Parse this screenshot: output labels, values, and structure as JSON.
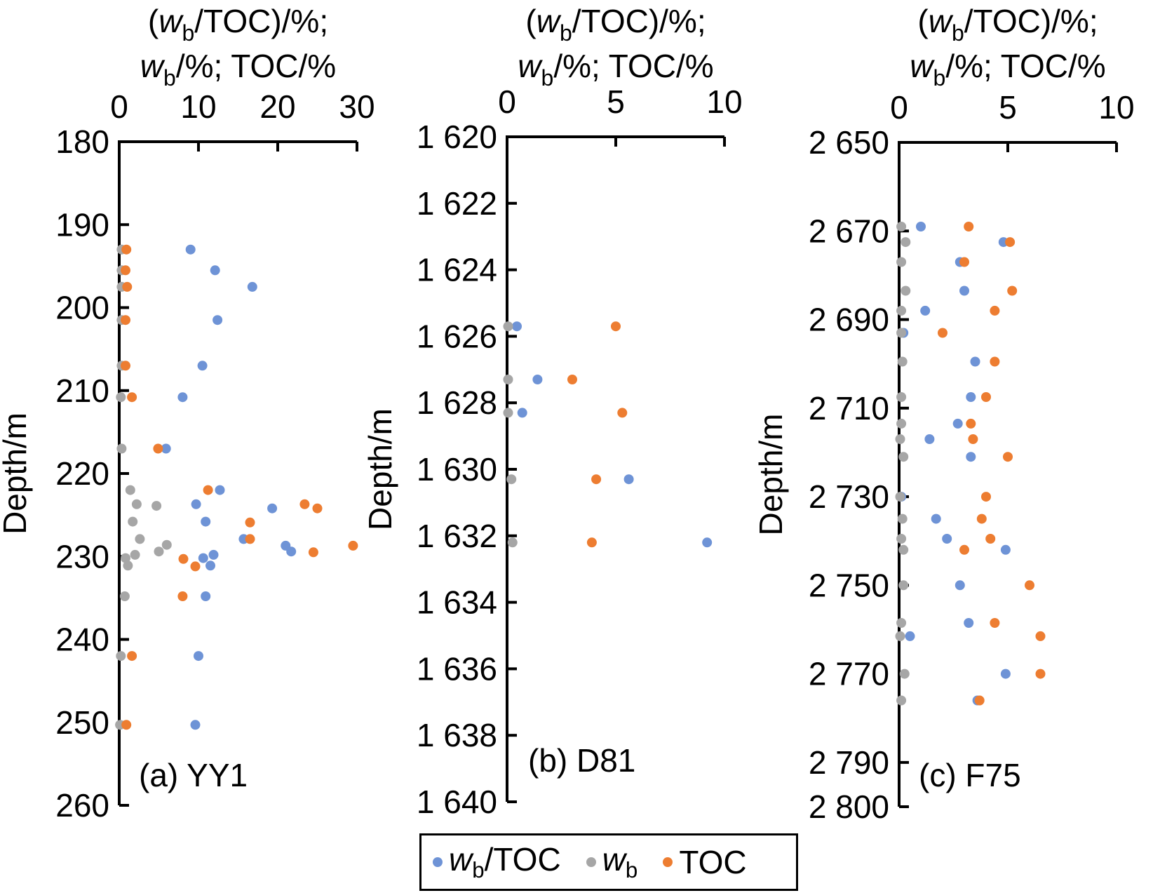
{
  "figure": {
    "axis_title_lines": [
      [
        {
          "text": "(",
          "style": "n"
        },
        {
          "text": "w",
          "style": "i"
        },
        {
          "text": "b",
          "style": "sub"
        },
        {
          "text": "/TOC)/%;",
          "style": "n"
        }
      ],
      [
        {
          "text": "w",
          "style": "i"
        },
        {
          "text": "b",
          "style": "sub"
        },
        {
          "text": "/%; TOC/%",
          "style": "n"
        }
      ]
    ]
  },
  "legend": {
    "items": [
      {
        "key": "wb/TOC",
        "color": "#6e93d6",
        "segments": [
          {
            "text": "w",
            "style": "i"
          },
          {
            "text": "b",
            "style": "sub"
          },
          {
            "text": "/TOC",
            "style": "n"
          }
        ]
      },
      {
        "key": "wb",
        "color": "#a6a6a6",
        "segments": [
          {
            "text": "w",
            "style": "i"
          },
          {
            "text": "b",
            "style": "sub"
          }
        ]
      },
      {
        "key": "TOC",
        "color": "#ed7d31",
        "segments": [
          {
            "text": "TOC",
            "style": "n"
          }
        ]
      }
    ]
  },
  "chart_data": [
    {
      "type": "scatter",
      "panel_label": "(a) YY1",
      "well": "YY1",
      "x_axis": {
        "min": 0,
        "max": 30,
        "ticks": [
          0,
          10,
          20,
          30
        ],
        "tick_labels": [
          "0",
          "10",
          "20",
          "30"
        ]
      },
      "y_axis": {
        "label": "Depth/m",
        "min": 180,
        "max": 260,
        "ticks": [
          180,
          190,
          200,
          210,
          220,
          230,
          240,
          250,
          260
        ],
        "tick_labels": [
          "180",
          "190",
          "200",
          "210",
          "220",
          "230",
          "240",
          "250",
          "260"
        ]
      },
      "series": [
        {
          "name": "wb/TOC",
          "color": "#6e93d6",
          "points": [
            [
              9.0,
              193
            ],
            [
              12.1,
              195.5
            ],
            [
              16.8,
              197.5
            ],
            [
              12.4,
              201.5
            ],
            [
              10.5,
              207
            ],
            [
              8.0,
              210.8
            ],
            [
              5.9,
              217
            ],
            [
              12.7,
              222
            ],
            [
              9.7,
              223.7
            ],
            [
              19.3,
              224.2
            ],
            [
              10.9,
              225.8
            ],
            [
              15.7,
              227.9
            ],
            [
              21.0,
              228.7
            ],
            [
              21.7,
              229.4
            ],
            [
              11.9,
              229.8
            ],
            [
              10.6,
              230.2
            ],
            [
              11.5,
              231.1
            ],
            [
              10.9,
              234.8
            ],
            [
              10.0,
              242
            ],
            [
              9.6,
              250.3
            ]
          ]
        },
        {
          "name": "wb",
          "color": "#a6a6a6",
          "points": [
            [
              0.3,
              193
            ],
            [
              0.3,
              195.5
            ],
            [
              0.3,
              197.5
            ],
            [
              0.3,
              201.5
            ],
            [
              0.3,
              207
            ],
            [
              0.2,
              210.8
            ],
            [
              0.3,
              217
            ],
            [
              1.4,
              222
            ],
            [
              2.2,
              223.7
            ],
            [
              4.7,
              223.9
            ],
            [
              1.7,
              225.8
            ],
            [
              2.6,
              227.9
            ],
            [
              6.0,
              228.6
            ],
            [
              5.0,
              229.4
            ],
            [
              2.0,
              229.8
            ],
            [
              0.8,
              230.2
            ],
            [
              1.1,
              231.1
            ],
            [
              0.7,
              234.8
            ],
            [
              0.2,
              242
            ],
            [
              0.1,
              250.3
            ]
          ]
        },
        {
          "name": "TOC",
          "color": "#ed7d31",
          "points": [
            [
              0.9,
              193
            ],
            [
              0.8,
              195.5
            ],
            [
              1.0,
              197.5
            ],
            [
              0.8,
              201.5
            ],
            [
              0.8,
              207
            ],
            [
              1.6,
              210.8
            ],
            [
              4.9,
              217
            ],
            [
              11.2,
              222
            ],
            [
              23.4,
              223.7
            ],
            [
              25.0,
              224.2
            ],
            [
              16.5,
              225.9
            ],
            [
              16.5,
              227.9
            ],
            [
              29.5,
              228.7
            ],
            [
              24.5,
              229.5
            ],
            [
              8.1,
              230.3
            ],
            [
              9.6,
              231.2
            ],
            [
              8.0,
              234.8
            ],
            [
              1.6,
              242
            ],
            [
              0.9,
              250.3
            ]
          ]
        }
      ]
    },
    {
      "type": "scatter",
      "panel_label": "(b) D81",
      "well": "D81",
      "x_axis": {
        "min": 0,
        "max": 10,
        "ticks": [
          0,
          5,
          10
        ],
        "tick_labels": [
          "0",
          "5",
          "10"
        ]
      },
      "y_axis": {
        "label": "Depth/m",
        "min": 1620,
        "max": 1640,
        "ticks": [
          1620,
          1622,
          1624,
          1626,
          1628,
          1630,
          1632,
          1634,
          1636,
          1638,
          1640
        ],
        "tick_labels": [
          "1 620",
          "1 622",
          "1 624",
          "1 626",
          "1 628",
          "1 630",
          "1 632",
          "1 634",
          "1 636",
          "1 638",
          "1 640"
        ]
      },
      "series": [
        {
          "name": "wb/TOC",
          "color": "#6e93d6",
          "points": [
            [
              0.45,
              1625.7
            ],
            [
              1.4,
              1627.3
            ],
            [
              0.7,
              1628.3
            ],
            [
              5.6,
              1630.3
            ],
            [
              9.2,
              1632.2
            ]
          ]
        },
        {
          "name": "wb",
          "color": "#a6a6a6",
          "points": [
            [
              0.05,
              1625.7
            ],
            [
              0.05,
              1627.3
            ],
            [
              0.05,
              1628.3
            ],
            [
              0.2,
              1630.3
            ],
            [
              0.25,
              1632.2
            ]
          ]
        },
        {
          "name": "TOC",
          "color": "#ed7d31",
          "points": [
            [
              5.0,
              1625.7
            ],
            [
              3.0,
              1627.3
            ],
            [
              5.3,
              1628.3
            ],
            [
              4.1,
              1630.3
            ],
            [
              3.9,
              1632.2
            ]
          ]
        }
      ]
    },
    {
      "type": "scatter",
      "panel_label": "(c) F75",
      "well": "F75",
      "x_axis": {
        "min": 0,
        "max": 10,
        "ticks": [
          0,
          5,
          10
        ],
        "tick_labels": [
          "0",
          "5",
          "10"
        ]
      },
      "y_axis": {
        "label": "Depth/m",
        "min": 2650,
        "max": 2800,
        "ticks": [
          2650,
          2670,
          2690,
          2710,
          2730,
          2750,
          2770,
          2790,
          2800
        ],
        "tick_labels": [
          "2 650",
          "2 670",
          "2 690",
          "2 710",
          "2 730",
          "2 750",
          "2 770",
          "2 790",
          "2 800"
        ]
      },
      "series": [
        {
          "name": "wb/TOC",
          "color": "#6e93d6",
          "points": [
            [
              1.0,
              2669
            ],
            [
              4.8,
              2672.5
            ],
            [
              2.8,
              2677
            ],
            [
              3.0,
              2683.5
            ],
            [
              1.2,
              2688
            ],
            [
              0.2,
              2693
            ],
            [
              3.5,
              2699.5
            ],
            [
              3.3,
              2707.5
            ],
            [
              2.7,
              2713.5
            ],
            [
              1.4,
              2717
            ],
            [
              3.3,
              2721
            ],
            [
              0.1,
              2730
            ],
            [
              1.7,
              2735
            ],
            [
              2.2,
              2739.5
            ],
            [
              4.9,
              2742
            ],
            [
              2.8,
              2750
            ],
            [
              3.2,
              2758.5
            ],
            [
              0.5,
              2761.5
            ],
            [
              4.9,
              2770
            ],
            [
              3.6,
              2776
            ]
          ]
        },
        {
          "name": "wb",
          "color": "#a6a6a6",
          "points": [
            [
              0.1,
              2669
            ],
            [
              0.3,
              2672.5
            ],
            [
              0.1,
              2677
            ],
            [
              0.3,
              2683.5
            ],
            [
              0.1,
              2688
            ],
            [
              0.1,
              2693
            ],
            [
              0.15,
              2699.5
            ],
            [
              0.1,
              2707.5
            ],
            [
              0.1,
              2713.5
            ],
            [
              0.05,
              2717
            ],
            [
              0.2,
              2721
            ],
            [
              0.05,
              2730
            ],
            [
              0.15,
              2735
            ],
            [
              0.1,
              2739.5
            ],
            [
              0.2,
              2742
            ],
            [
              0.2,
              2750
            ],
            [
              0.1,
              2758.5
            ],
            [
              0.05,
              2761.5
            ],
            [
              0.25,
              2770
            ],
            [
              0.1,
              2776
            ]
          ]
        },
        {
          "name": "TOC",
          "color": "#ed7d31",
          "points": [
            [
              3.2,
              2669
            ],
            [
              5.1,
              2672.5
            ],
            [
              3.0,
              2677
            ],
            [
              5.2,
              2683.5
            ],
            [
              4.4,
              2688
            ],
            [
              2.0,
              2693
            ],
            [
              4.4,
              2699.5
            ],
            [
              4.0,
              2707.5
            ],
            [
              3.3,
              2713.5
            ],
            [
              3.4,
              2717
            ],
            [
              5.0,
              2721
            ],
            [
              4.0,
              2730
            ],
            [
              3.8,
              2735
            ],
            [
              4.2,
              2739.5
            ],
            [
              3.0,
              2742
            ],
            [
              6.0,
              2750
            ],
            [
              4.4,
              2758.5
            ],
            [
              6.5,
              2761.5
            ],
            [
              6.5,
              2770
            ],
            [
              3.7,
              2776
            ]
          ]
        }
      ]
    }
  ]
}
